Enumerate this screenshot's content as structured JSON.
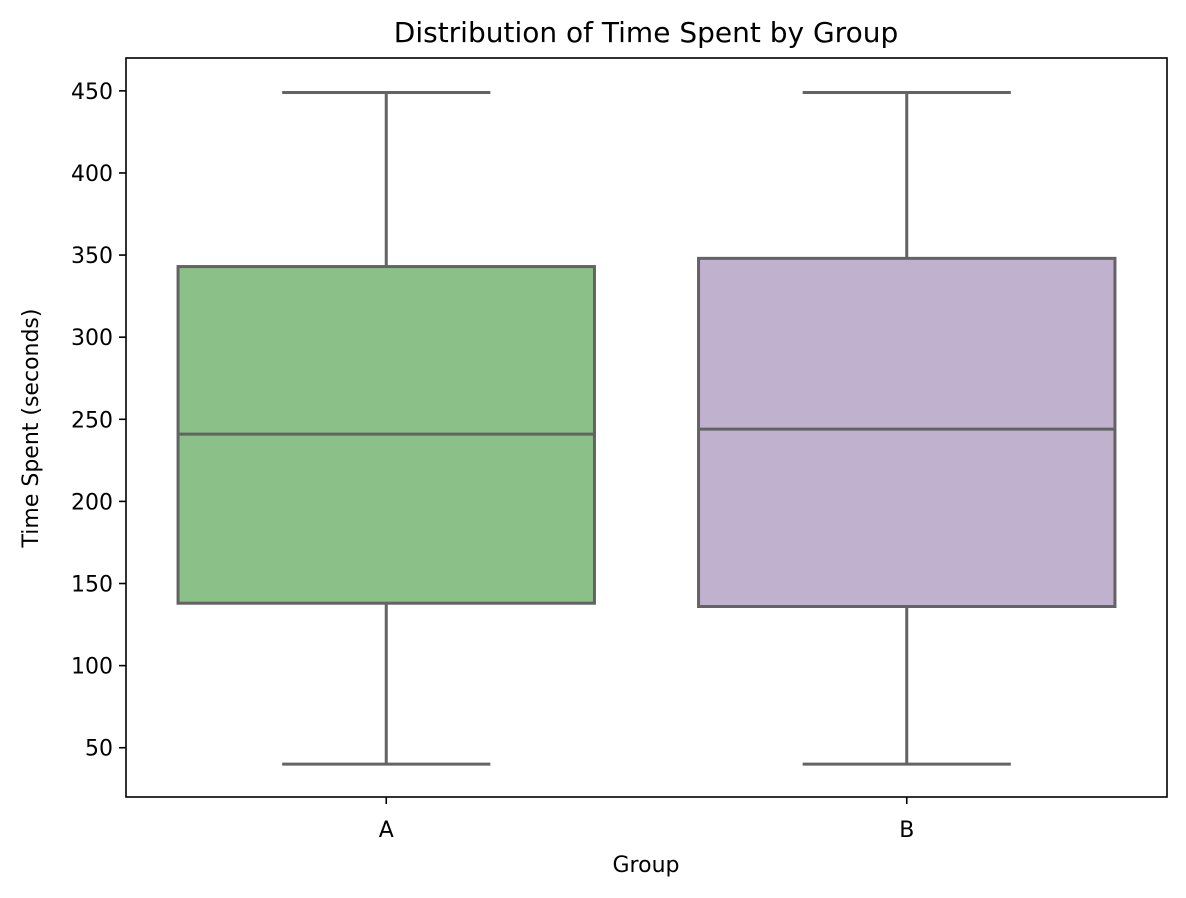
{
  "chart_data": {
    "type": "box",
    "title": "Distribution of Time Spent by Group",
    "xlabel": "Group",
    "ylabel": "Time Spent (seconds)",
    "ylim": [
      20,
      470
    ],
    "yticks": [
      50,
      100,
      150,
      200,
      250,
      300,
      350,
      400,
      450
    ],
    "grid": false,
    "categories": [
      "A",
      "B"
    ],
    "boxes": [
      {
        "category": "A",
        "whisker_low": 40,
        "q1": 138,
        "median": 241,
        "q3": 343,
        "whisker_high": 449,
        "color": "#8bc088"
      },
      {
        "category": "B",
        "whisker_low": 40,
        "q1": 136,
        "median": 244,
        "q3": 348,
        "whisker_high": 449,
        "color": "#c0b1cf"
      }
    ],
    "line_color": "#636363"
  }
}
